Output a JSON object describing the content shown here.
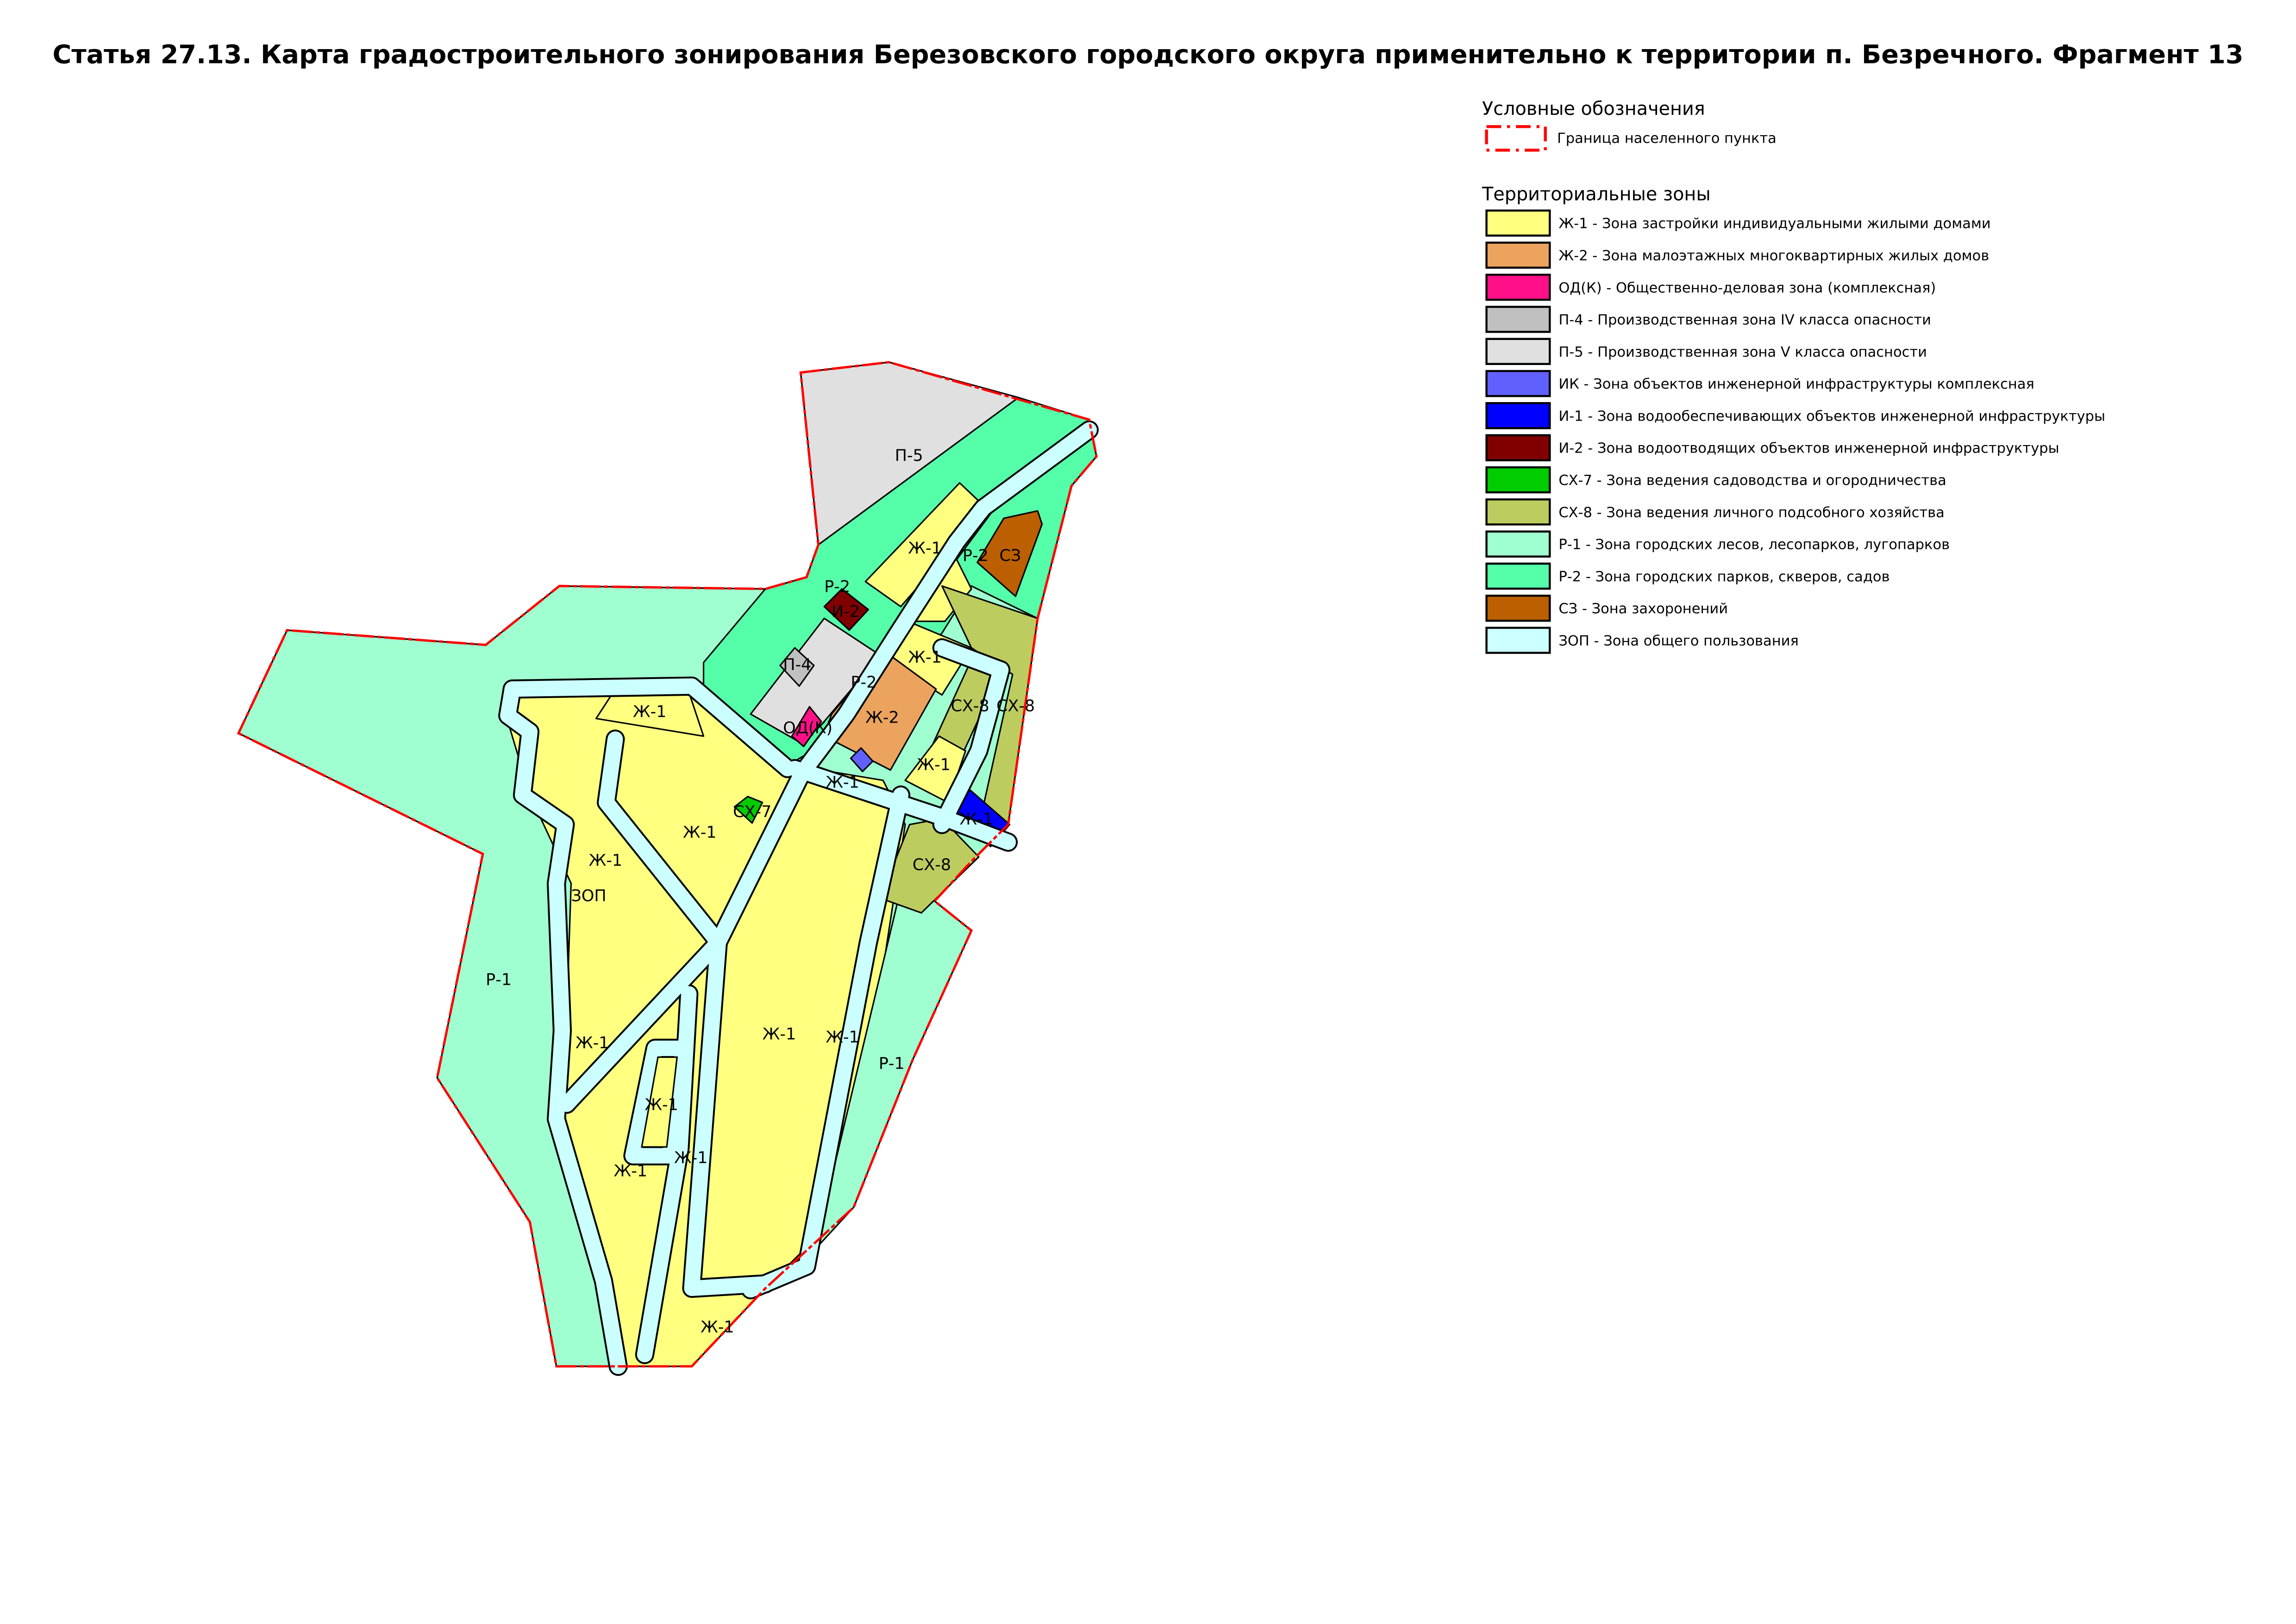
{
  "title": "Статья 27.13. Карта градостроительного зонирования Березовского городского округа применительно к территории п. Безречного. Фрагмент 13",
  "legend": {
    "heading": "Условные обозначения",
    "boundary": {
      "label": "Граница населенного пункта",
      "color": "#ff0000"
    },
    "zones_heading": "Территориальные зоны",
    "items": [
      {
        "code": "Ж-1",
        "label": "Ж-1 - Зона застройки индивидуальными жилыми домами",
        "color": "#ffff80"
      },
      {
        "code": "Ж-2",
        "label": "Ж-2 - Зона малоэтажных многоквартирных жилых домов",
        "color": "#eba35e"
      },
      {
        "code": "ОД(К)",
        "label": "ОД(К) - Общественно-деловая зона (комплексная)",
        "color": "#ff1088"
      },
      {
        "code": "П-4",
        "label": "П-4 - Производственная зона IV класса опасности",
        "color": "#c0c0c0"
      },
      {
        "code": "П-5",
        "label": "П-5 - Производственная зона V класса опасности",
        "color": "#e0e0e0"
      },
      {
        "code": "ИК",
        "label": "ИК - Зона объектов инженерной инфраструктуры комплексная",
        "color": "#6060ff"
      },
      {
        "code": "И-1",
        "label": "И-1 - Зона водообеспечивающих объектов инженерной инфраструктуры",
        "color": "#0000ff"
      },
      {
        "code": "И-2",
        "label": "И-2 - Зона водоотводящих объектов инженерной инфраструктуры",
        "color": "#800000"
      },
      {
        "code": "СХ-7",
        "label": "СХ-7 - Зона ведения садоводства и огородничества",
        "color": "#00cc00"
      },
      {
        "code": "СХ-8",
        "label": "СХ-8 - Зона ведения личного подсобного хозяйства",
        "color": "#bdcc5e"
      },
      {
        "code": "Р-1",
        "label": "Р-1 - Зона городских лесов, лесопарков, лугопарков",
        "color": "#a0ffd0"
      },
      {
        "code": "Р-2",
        "label": "Р-2 - Зона городских парков, скверов, садов",
        "color": "#55ffaa"
      },
      {
        "code": "СЗ",
        "label": "СЗ - Зона захоронений",
        "color": "#bb5f00"
      },
      {
        "code": "ЗОП",
        "label": "ЗОП - Зона общего пользования",
        "color": "#ccffff"
      }
    ]
  },
  "map": {
    "labels": [
      "П-5",
      "Ж-1",
      "Р-2",
      "СЗ",
      "Р-2",
      "И-2",
      "П-4",
      "Ж-1",
      "Р-2",
      "Ж-2",
      "СХ-8",
      "СХ-8",
      "ОД(К)",
      "Ж-1",
      "Ж-1",
      "Ж-1",
      "СХ-7",
      "Ж-1",
      "Ж-1",
      "СХ-8",
      "ЗОП",
      "Р-1",
      "Ж-1",
      "Ж-1",
      "Ж-1",
      "Р-1",
      "Ж-1",
      "Ж-1",
      "Ж-1",
      "Ж-1"
    ]
  }
}
